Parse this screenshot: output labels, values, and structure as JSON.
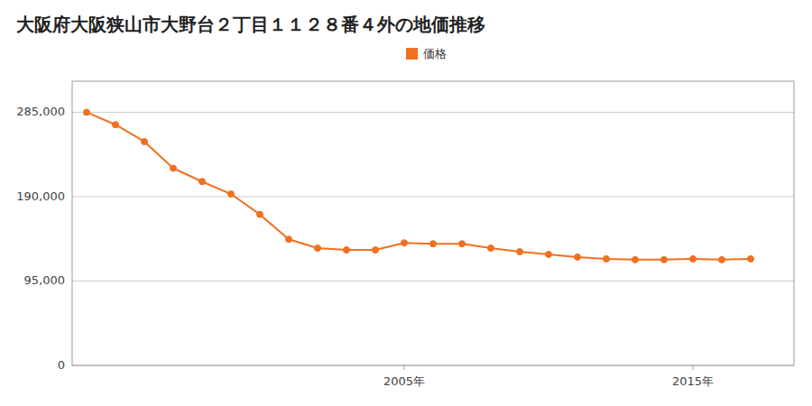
{
  "chart_data": {
    "type": "line",
    "title": "大阪府大阪狭山市大野台２丁目１１２８番４外の地価推移",
    "x": [
      1994,
      1995,
      1996,
      1997,
      1998,
      1999,
      2000,
      2001,
      2002,
      2003,
      2004,
      2005,
      2006,
      2007,
      2008,
      2009,
      2010,
      2011,
      2012,
      2013,
      2014,
      2015,
      2016,
      2017
    ],
    "series": [
      {
        "name": "価格",
        "color": "#f07020",
        "marker": "circle",
        "values": [
          285000,
          271000,
          252000,
          222000,
          207000,
          193000,
          170000,
          142000,
          132000,
          130000,
          130000,
          138000,
          137000,
          137000,
          132000,
          128000,
          125000,
          122000,
          120000,
          119000,
          119000,
          120000,
          119000,
          120000
        ]
      }
    ],
    "xlim": [
      1993.5,
      2018.5
    ],
    "xticks": [
      {
        "value": 2005,
        "label": "2005年"
      },
      {
        "value": 2015,
        "label": "2015年"
      }
    ],
    "ylim": [
      0,
      320000
    ],
    "yticks": [
      0,
      {
        "value": 95000,
        "label": "95,000"
      },
      {
        "value": 190000,
        "label": "190,000"
      },
      {
        "value": 285000,
        "label": "285,000"
      }
    ],
    "grid": true,
    "legend": "top"
  }
}
